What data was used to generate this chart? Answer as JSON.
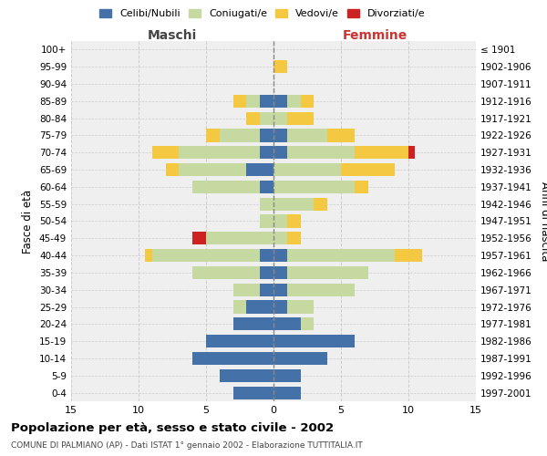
{
  "age_groups": [
    "0-4",
    "5-9",
    "10-14",
    "15-19",
    "20-24",
    "25-29",
    "30-34",
    "35-39",
    "40-44",
    "45-49",
    "50-54",
    "55-59",
    "60-64",
    "65-69",
    "70-74",
    "75-79",
    "80-84",
    "85-89",
    "90-94",
    "95-99",
    "100+"
  ],
  "birth_years": [
    "1997-2001",
    "1992-1996",
    "1987-1991",
    "1982-1986",
    "1977-1981",
    "1972-1976",
    "1967-1971",
    "1962-1966",
    "1957-1961",
    "1952-1956",
    "1947-1951",
    "1942-1946",
    "1937-1941",
    "1932-1936",
    "1927-1931",
    "1922-1926",
    "1917-1921",
    "1912-1916",
    "1907-1911",
    "1902-1906",
    "≤ 1901"
  ],
  "maschi": {
    "celibi": [
      3,
      4,
      6,
      5,
      3,
      2,
      1,
      1,
      1,
      0,
      0,
      0,
      1,
      2,
      1,
      1,
      0,
      1,
      0,
      0,
      0
    ],
    "coniugati": [
      0,
      0,
      0,
      0,
      0,
      1,
      2,
      5,
      8,
      5,
      1,
      1,
      5,
      5,
      6,
      3,
      1,
      1,
      0,
      0,
      0
    ],
    "vedovi": [
      0,
      0,
      0,
      0,
      0,
      0,
      0,
      0,
      0.5,
      0,
      0,
      0,
      0,
      1,
      2,
      1,
      1,
      1,
      0,
      0,
      0
    ],
    "divorziati": [
      0,
      0,
      0,
      0,
      0,
      0,
      0,
      0,
      0,
      1,
      0,
      0,
      0,
      0,
      0,
      0,
      0,
      0,
      0,
      0,
      0
    ]
  },
  "femmine": {
    "nubili": [
      2,
      2,
      4,
      6,
      2,
      1,
      1,
      1,
      1,
      0,
      0,
      0,
      0,
      0,
      1,
      1,
      0,
      1,
      0,
      0,
      0
    ],
    "coniugate": [
      0,
      0,
      0,
      0,
      1,
      2,
      5,
      6,
      8,
      1,
      1,
      3,
      6,
      5,
      5,
      3,
      1,
      1,
      0,
      0,
      0
    ],
    "vedove": [
      0,
      0,
      0,
      0,
      0,
      0,
      0,
      0,
      2,
      1,
      1,
      1,
      1,
      4,
      4,
      2,
      2,
      1,
      0,
      1,
      0
    ],
    "divorziate": [
      0,
      0,
      0,
      0,
      0,
      0,
      0,
      0,
      0,
      0,
      0,
      0,
      0,
      0,
      0.5,
      0,
      0,
      0,
      0,
      0,
      0
    ]
  },
  "colors": {
    "celibi": "#4472a8",
    "coniugati": "#c5d9a0",
    "vedovi": "#f5c842",
    "divorziati": "#cc2222"
  },
  "xlim": 15,
  "title": "Popolazione per età, sesso e stato civile - 2002",
  "subtitle": "COMUNE DI PALMIANO (AP) - Dati ISTAT 1° gennaio 2002 - Elaborazione TUTTITALIA.IT",
  "xlabel_left": "Maschi",
  "xlabel_right": "Femmine",
  "ylabel_left": "Fasce di età",
  "ylabel_right": "Anni di nascita",
  "legend_labels": [
    "Celibi/Nubili",
    "Coniugati/e",
    "Vedovi/e",
    "Divorziati/e"
  ],
  "bg_color": "#ffffff",
  "grid_color": "#cccccc"
}
